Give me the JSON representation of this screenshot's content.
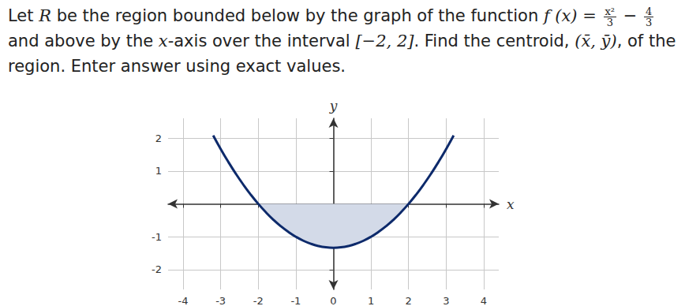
{
  "question": [
    {
      "text": "Let "
    },
    {
      "math": "R"
    },
    {
      "text": " be the region bounded below by the graph of the function "
    },
    {
      "math": "f (x) = "
    },
    {
      "frac": [
        "x²",
        "3"
      ]
    },
    {
      "text": " − "
    },
    {
      "frac": [
        "4",
        "3"
      ]
    },
    {
      "text": " and above by the "
    },
    {
      "math": "x"
    },
    {
      "text": "-axis over the interval "
    },
    {
      "math": "[−2, 2]"
    },
    {
      "text": ". Find the centroid, "
    },
    {
      "math": "(x̄, ȳ)"
    },
    {
      "text": ", of the region. Enter answer using exact values."
    }
  ],
  "chart_data": {
    "type": "line",
    "x_label": "x",
    "y_label": "y",
    "x": [
      -3.2,
      -3.0,
      -2.8,
      -2.6,
      -2.4,
      -2.2,
      -2.0,
      -1.8,
      -1.6,
      -1.4,
      -1.2,
      -1.0,
      -0.8,
      -0.6,
      -0.4,
      -0.2,
      0,
      0.2,
      0.4,
      0.6,
      0.8,
      1.0,
      1.2,
      1.4,
      1.6,
      1.8,
      2.0,
      2.2,
      2.4,
      2.6,
      2.8,
      3.0,
      3.2
    ],
    "values": [
      2.08,
      1.667,
      1.28,
      0.92,
      0.587,
      0.28,
      0,
      -0.253,
      -0.48,
      -0.68,
      -0.853,
      -1,
      -1.12,
      -1.213,
      -1.28,
      -1.32,
      -1.333,
      -1.32,
      -1.28,
      -1.213,
      -1.12,
      -1,
      -0.853,
      -0.68,
      -0.48,
      -0.253,
      0,
      0.28,
      0.587,
      0.92,
      1.28,
      1.667,
      2.08
    ],
    "color": "#0d2a6b",
    "shaded_interval": [
      -2,
      2
    ],
    "shaded_color": "#d3dae8",
    "xlim": [
      -4.4,
      4.4
    ],
    "xticks": [
      -4,
      -3,
      -2,
      -1,
      0,
      1,
      2,
      3,
      4
    ],
    "ylim": [
      -2.6,
      2.6
    ],
    "yticks": [
      -2,
      -1,
      1,
      2
    ],
    "grid": true
  }
}
